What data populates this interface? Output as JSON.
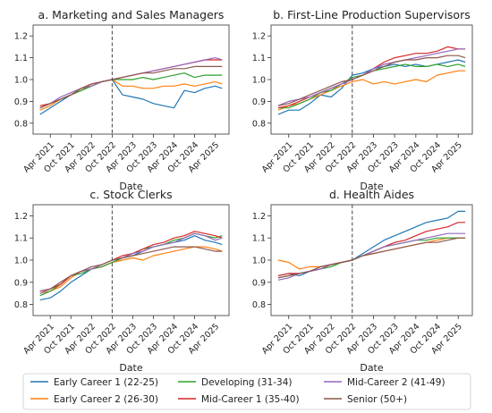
{
  "legend": {
    "placement": "bottom",
    "entries": [
      {
        "label": "Early Career 1 (22-25)",
        "color": "#1f77b4"
      },
      {
        "label": "Early Career 2 (26-30)",
        "color": "#ff7f0e"
      },
      {
        "label": "Developing (31-34)",
        "color": "#2ca02c"
      },
      {
        "label": "Mid-Career 1 (35-40)",
        "color": "#d62728"
      },
      {
        "label": "Mid-Career 2 (41-49)",
        "color": "#9467bd"
      },
      {
        "label": "Senior (50+)",
        "color": "#8c564b"
      }
    ]
  },
  "chart_data": [
    {
      "type": "line",
      "title": "a. Marketing and Sales Managers",
      "xlabel": "Date",
      "ylabel": "",
      "ylim": [
        0.75,
        1.25
      ],
      "yticks": [
        0.8,
        0.9,
        1.0,
        1.1,
        1.2
      ],
      "xticks": [
        "Apr 2021",
        "Oct 2021",
        "Apr 2022",
        "Oct 2022",
        "Apr 2023",
        "Oct 2023",
        "Apr 2024",
        "Oct 2024",
        "Apr 2025"
      ],
      "x": [
        "2021-01",
        "2021-04",
        "2021-07",
        "2021-10",
        "2022-01",
        "2022-04",
        "2022-07",
        "2022-10",
        "2023-01",
        "2023-04",
        "2023-07",
        "2023-10",
        "2024-01",
        "2024-04",
        "2024-07",
        "2024-10",
        "2025-01",
        "2025-04",
        "2025-06"
      ],
      "vline": "2022-10",
      "series": [
        {
          "name": "Early Career 1 (22-25)",
          "values": [
            0.84,
            0.87,
            0.9,
            0.93,
            0.95,
            0.97,
            0.99,
            1.0,
            0.93,
            0.92,
            0.91,
            0.89,
            0.88,
            0.87,
            0.95,
            0.94,
            0.96,
            0.97,
            0.96
          ]
        },
        {
          "name": "Early Career 2 (26-30)",
          "values": [
            0.86,
            0.88,
            0.91,
            0.93,
            0.95,
            0.98,
            0.99,
            1.0,
            0.97,
            0.97,
            0.96,
            0.96,
            0.97,
            0.97,
            0.98,
            0.97,
            0.98,
            0.99,
            0.98
          ]
        },
        {
          "name": "Developing (31-34)",
          "values": [
            0.87,
            0.89,
            0.91,
            0.93,
            0.95,
            0.97,
            0.99,
            1.0,
            1.0,
            1.0,
            1.01,
            1.0,
            1.01,
            1.02,
            1.03,
            1.01,
            1.02,
            1.02,
            1.02
          ]
        },
        {
          "name": "Mid-Career 1 (35-40)",
          "values": [
            0.88,
            0.89,
            0.91,
            0.93,
            0.96,
            0.98,
            0.99,
            1.0,
            1.01,
            1.02,
            1.03,
            1.04,
            1.05,
            1.06,
            1.07,
            1.08,
            1.09,
            1.09,
            1.09
          ]
        },
        {
          "name": "Mid-Career 2 (41-49)",
          "values": [
            0.87,
            0.89,
            0.92,
            0.94,
            0.96,
            0.97,
            0.99,
            1.0,
            1.01,
            1.02,
            1.03,
            1.04,
            1.05,
            1.06,
            1.07,
            1.08,
            1.09,
            1.1,
            1.09
          ]
        },
        {
          "name": "Senior (50+)",
          "values": [
            0.87,
            0.89,
            0.91,
            0.93,
            0.96,
            0.98,
            0.99,
            1.0,
            1.01,
            1.02,
            1.03,
            1.03,
            1.04,
            1.05,
            1.05,
            1.06,
            1.06,
            1.06,
            1.06
          ]
        }
      ]
    },
    {
      "type": "line",
      "title": "b. First-Line Production Supervisors",
      "xlabel": "Date",
      "ylabel": "",
      "ylim": [
        0.75,
        1.25
      ],
      "yticks": [
        0.8,
        0.9,
        1.0,
        1.1,
        1.2
      ],
      "xticks": [
        "Apr 2021",
        "Oct 2021",
        "Apr 2022",
        "Oct 2022",
        "Apr 2023",
        "Oct 2023",
        "Apr 2024",
        "Oct 2024",
        "Apr 2025"
      ],
      "x": [
        "2021-01",
        "2021-04",
        "2021-07",
        "2021-10",
        "2022-01",
        "2022-04",
        "2022-07",
        "2022-10",
        "2023-01",
        "2023-04",
        "2023-07",
        "2023-10",
        "2024-01",
        "2024-04",
        "2024-07",
        "2024-10",
        "2025-01",
        "2025-04",
        "2025-06"
      ],
      "vline": "2022-10",
      "series": [
        {
          "name": "Early Career 1 (22-25)",
          "values": [
            0.84,
            0.86,
            0.86,
            0.89,
            0.93,
            0.92,
            0.96,
            1.02,
            1.03,
            1.05,
            1.06,
            1.07,
            1.06,
            1.07,
            1.06,
            1.07,
            1.08,
            1.09,
            1.08
          ]
        },
        {
          "name": "Early Career 2 (26-30)",
          "values": [
            0.86,
            0.88,
            0.89,
            0.91,
            0.93,
            0.95,
            0.97,
            0.99,
            1.0,
            0.98,
            0.99,
            0.98,
            0.99,
            1.0,
            0.99,
            1.02,
            1.03,
            1.04,
            1.04
          ]
        },
        {
          "name": "Developing (31-34)",
          "values": [
            0.87,
            0.87,
            0.89,
            0.91,
            0.94,
            0.95,
            0.98,
            1.01,
            1.02,
            1.04,
            1.05,
            1.06,
            1.07,
            1.06,
            1.06,
            1.07,
            1.06,
            1.07,
            1.06
          ]
        },
        {
          "name": "Mid-Career 1 (35-40)",
          "values": [
            0.87,
            0.88,
            0.9,
            0.92,
            0.94,
            0.96,
            0.98,
            1.0,
            1.02,
            1.05,
            1.08,
            1.1,
            1.11,
            1.12,
            1.12,
            1.13,
            1.15,
            1.14,
            1.14
          ]
        },
        {
          "name": "Mid-Career 2 (41-49)",
          "values": [
            0.88,
            0.9,
            0.91,
            0.92,
            0.94,
            0.96,
            0.98,
            1.0,
            1.02,
            1.05,
            1.07,
            1.08,
            1.09,
            1.1,
            1.11,
            1.12,
            1.13,
            1.14,
            1.14
          ]
        },
        {
          "name": "Senior (50+)",
          "values": [
            0.88,
            0.89,
            0.91,
            0.93,
            0.95,
            0.97,
            0.99,
            1.0,
            1.02,
            1.04,
            1.06,
            1.08,
            1.09,
            1.09,
            1.1,
            1.1,
            1.11,
            1.11,
            1.1
          ]
        }
      ]
    },
    {
      "type": "line",
      "title": "c. Stock Clerks",
      "xlabel": "Date",
      "ylabel": "",
      "ylim": [
        0.75,
        1.25
      ],
      "yticks": [
        0.8,
        0.9,
        1.0,
        1.1,
        1.2
      ],
      "xticks": [
        "Apr 2021",
        "Oct 2021",
        "Apr 2022",
        "Oct 2022",
        "Apr 2023",
        "Oct 2023",
        "Apr 2024",
        "Oct 2024",
        "Apr 2025"
      ],
      "x": [
        "2021-01",
        "2021-04",
        "2021-07",
        "2021-10",
        "2022-01",
        "2022-04",
        "2022-07",
        "2022-10",
        "2023-01",
        "2023-04",
        "2023-07",
        "2023-10",
        "2024-01",
        "2024-04",
        "2024-07",
        "2024-10",
        "2025-01",
        "2025-04",
        "2025-06"
      ],
      "vline": "2022-10",
      "series": [
        {
          "name": "Early Career 1 (22-25)",
          "values": [
            0.82,
            0.83,
            0.86,
            0.9,
            0.93,
            0.96,
            0.97,
            0.99,
            1.01,
            1.02,
            1.04,
            1.06,
            1.07,
            1.08,
            1.09,
            1.11,
            1.09,
            1.08,
            1.07
          ]
        },
        {
          "name": "Early Career 2 (26-30)",
          "values": [
            0.85,
            0.86,
            0.88,
            0.92,
            0.95,
            0.96,
            0.97,
            0.99,
            1.0,
            1.01,
            1.0,
            1.02,
            1.03,
            1.04,
            1.05,
            1.06,
            1.06,
            1.05,
            1.04
          ]
        },
        {
          "name": "Developing (31-34)",
          "values": [
            0.84,
            0.86,
            0.89,
            0.93,
            0.94,
            0.96,
            0.97,
            0.99,
            1.01,
            1.03,
            1.05,
            1.06,
            1.07,
            1.09,
            1.1,
            1.12,
            1.11,
            1.1,
            1.11
          ]
        },
        {
          "name": "Mid-Career 1 (35-40)",
          "values": [
            0.86,
            0.87,
            0.89,
            0.93,
            0.95,
            0.96,
            0.98,
            1.0,
            1.02,
            1.03,
            1.05,
            1.07,
            1.08,
            1.1,
            1.11,
            1.13,
            1.12,
            1.11,
            1.1
          ]
        },
        {
          "name": "Mid-Career 2 (41-49)",
          "values": [
            0.85,
            0.87,
            0.9,
            0.93,
            0.95,
            0.96,
            0.98,
            1.0,
            1.01,
            1.03,
            1.04,
            1.06,
            1.07,
            1.08,
            1.1,
            1.12,
            1.11,
            1.09,
            1.1
          ]
        },
        {
          "name": "Senior (50+)",
          "values": [
            0.86,
            0.87,
            0.9,
            0.93,
            0.95,
            0.97,
            0.98,
            1.0,
            1.01,
            1.02,
            1.03,
            1.04,
            1.05,
            1.06,
            1.06,
            1.06,
            1.05,
            1.04,
            1.04
          ]
        }
      ]
    },
    {
      "type": "line",
      "title": "d. Health Aides",
      "xlabel": "Date",
      "ylabel": "",
      "ylim": [
        0.75,
        1.25
      ],
      "yticks": [
        0.8,
        0.9,
        1.0,
        1.1,
        1.2
      ],
      "xticks": [
        "Apr 2021",
        "Oct 2021",
        "Apr 2022",
        "Oct 2022",
        "Apr 2023",
        "Oct 2023",
        "Apr 2024",
        "Oct 2024",
        "Apr 2025"
      ],
      "x": [
        "2021-01",
        "2021-04",
        "2021-07",
        "2021-10",
        "2022-01",
        "2022-04",
        "2022-07",
        "2022-10",
        "2023-01",
        "2023-04",
        "2023-07",
        "2023-10",
        "2024-01",
        "2024-04",
        "2024-07",
        "2024-10",
        "2025-01",
        "2025-04",
        "2025-06"
      ],
      "vline": "2022-10",
      "series": [
        {
          "name": "Early Career 1 (22-25)",
          "values": [
            0.93,
            0.94,
            0.93,
            0.95,
            0.97,
            0.98,
            0.99,
            1.0,
            1.03,
            1.06,
            1.09,
            1.11,
            1.13,
            1.15,
            1.17,
            1.18,
            1.19,
            1.22,
            1.22
          ]
        },
        {
          "name": "Early Career 2 (26-30)",
          "values": [
            1.0,
            0.99,
            0.96,
            0.97,
            0.97,
            0.98,
            0.99,
            1.0,
            1.02,
            1.03,
            1.04,
            1.05,
            1.06,
            1.07,
            1.08,
            1.09,
            1.1,
            1.1,
            1.1
          ]
        },
        {
          "name": "Developing (31-34)",
          "values": [
            0.92,
            0.93,
            0.94,
            0.95,
            0.96,
            0.97,
            0.99,
            1.0,
            1.02,
            1.04,
            1.06,
            1.07,
            1.08,
            1.09,
            1.09,
            1.1,
            1.1,
            1.1,
            1.1
          ]
        },
        {
          "name": "Mid-Career 1 (35-40)",
          "values": [
            0.93,
            0.94,
            0.94,
            0.95,
            0.96,
            0.98,
            0.99,
            1.0,
            1.02,
            1.04,
            1.06,
            1.08,
            1.09,
            1.11,
            1.13,
            1.14,
            1.15,
            1.17,
            1.17
          ]
        },
        {
          "name": "Mid-Career 2 (41-49)",
          "values": [
            0.91,
            0.92,
            0.94,
            0.95,
            0.96,
            0.98,
            0.99,
            1.0,
            1.02,
            1.04,
            1.06,
            1.07,
            1.08,
            1.09,
            1.1,
            1.11,
            1.12,
            1.12,
            1.12
          ]
        },
        {
          "name": "Senior (50+)",
          "values": [
            0.92,
            0.93,
            0.94,
            0.95,
            0.97,
            0.98,
            0.99,
            1.0,
            1.02,
            1.03,
            1.04,
            1.05,
            1.06,
            1.07,
            1.08,
            1.08,
            1.09,
            1.1,
            1.1
          ]
        }
      ]
    }
  ]
}
